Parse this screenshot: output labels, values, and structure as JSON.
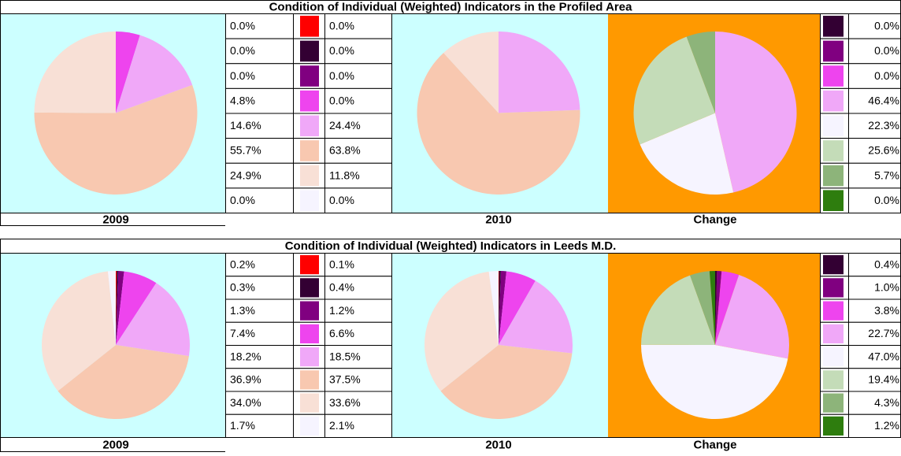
{
  "panels": [
    {
      "title": "Condition of Individual (Weighted) Indicators in the Profiled Area",
      "labels": [
        "2009",
        "2010",
        "Change"
      ]
    },
    {
      "title": "Condition of Individual (Weighted) Indicators in Leeds M.D.",
      "labels": [
        "2009",
        "2010",
        "Change"
      ]
    }
  ],
  "chart_data": [
    {
      "type": "pie",
      "values": [
        0.0,
        0.0,
        0.0,
        4.8,
        14.6,
        55.7,
        24.9,
        0.0
      ],
      "value_labels": [
        "0.0%",
        "0.0%",
        "0.0%",
        "4.8%",
        "14.6%",
        "55.7%",
        "24.9%",
        "0.0%"
      ],
      "colors": [
        "#ff0000",
        "#330033",
        "#800080",
        "#ee44ee",
        "#f0a8f8",
        "#f8c8b0",
        "#f8e0d6",
        "#f6f4ff"
      ]
    },
    {
      "type": "pie",
      "values": [
        0.0,
        0.0,
        0.0,
        0.0,
        24.4,
        63.8,
        11.8,
        0.0
      ],
      "value_labels": [
        "0.0%",
        "0.0%",
        "0.0%",
        "0.0%",
        "24.4%",
        "63.8%",
        "11.8%",
        "0.0%"
      ],
      "colors": [
        "#ff0000",
        "#330033",
        "#800080",
        "#ee44ee",
        "#f0a8f8",
        "#f8c8b0",
        "#f8e0d6",
        "#f6f4ff"
      ]
    },
    {
      "type": "pie",
      "values": [
        0.0,
        0.0,
        0.0,
        46.4,
        22.3,
        25.6,
        5.7,
        0.0
      ],
      "value_labels": [
        "0.0%",
        "0.0%",
        "0.0%",
        "46.4%",
        "22.3%",
        "25.6%",
        "5.7%",
        "0.0%"
      ],
      "colors": [
        "#330033",
        "#800080",
        "#ee44ee",
        "#f0a8f8",
        "#f6f4ff",
        "#c4dcb8",
        "#8db47a",
        "#2e7d0e"
      ]
    },
    {
      "type": "pie",
      "values": [
        0.2,
        0.3,
        1.3,
        7.4,
        18.2,
        36.9,
        34.0,
        1.7
      ],
      "value_labels": [
        "0.2%",
        "0.3%",
        "1.3%",
        "7.4%",
        "18.2%",
        "36.9%",
        "34.0%",
        "1.7%"
      ],
      "colors": [
        "#ff0000",
        "#330033",
        "#800080",
        "#ee44ee",
        "#f0a8f8",
        "#f8c8b0",
        "#f8e0d6",
        "#f6f4ff"
      ]
    },
    {
      "type": "pie",
      "values": [
        0.1,
        0.4,
        1.2,
        6.6,
        18.5,
        37.5,
        33.6,
        2.1
      ],
      "value_labels": [
        "0.1%",
        "0.4%",
        "1.2%",
        "6.6%",
        "18.5%",
        "37.5%",
        "33.6%",
        "2.1%"
      ],
      "colors": [
        "#ff0000",
        "#330033",
        "#800080",
        "#ee44ee",
        "#f0a8f8",
        "#f8c8b0",
        "#f8e0d6",
        "#f6f4ff"
      ]
    },
    {
      "type": "pie",
      "values": [
        0.4,
        1.0,
        3.8,
        22.7,
        47.0,
        19.4,
        4.3,
        1.2
      ],
      "value_labels": [
        "0.4%",
        "1.0%",
        "3.8%",
        "22.7%",
        "47.0%",
        "19.4%",
        "4.3%",
        "1.2%"
      ],
      "colors": [
        "#330033",
        "#800080",
        "#ee44ee",
        "#f0a8f8",
        "#f6f4ff",
        "#c4dcb8",
        "#8db47a",
        "#2e7d0e"
      ]
    }
  ]
}
